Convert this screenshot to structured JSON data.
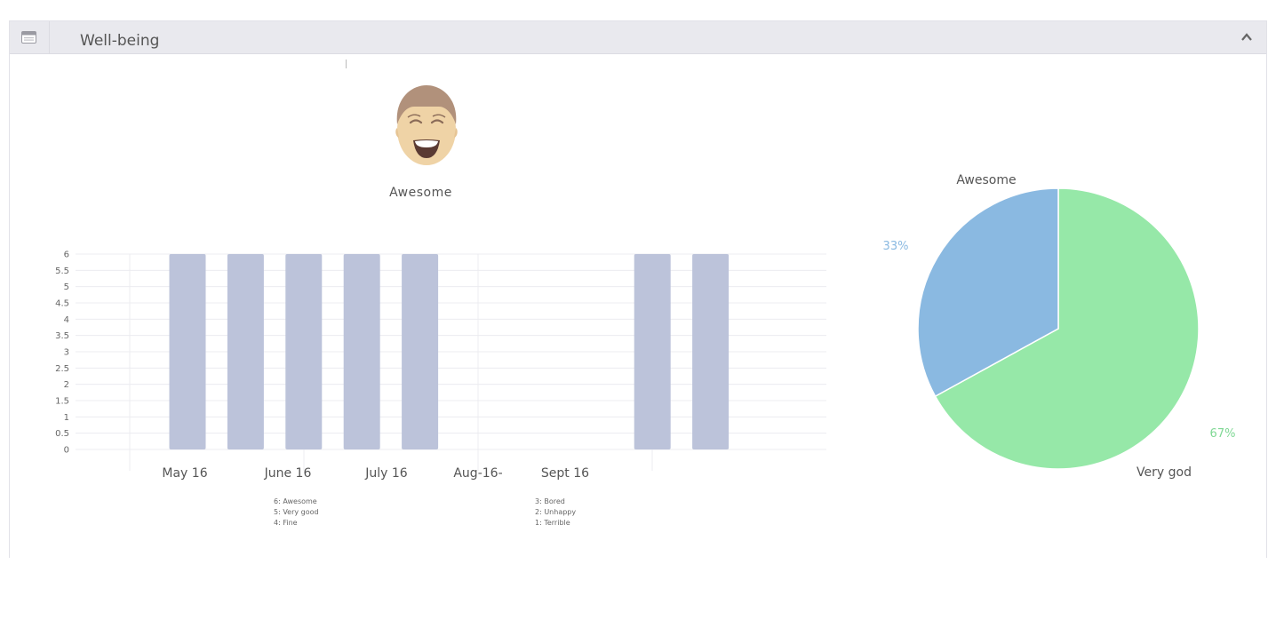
{
  "panel": {
    "title": "Well-being",
    "header_icon": "panel-window-icon",
    "collapse_icon": "chevron-up-icon"
  },
  "current_mood": {
    "label": "Awesome",
    "icon": "smiling-face-icon"
  },
  "legend": {
    "left": [
      "6: Awesome",
      "5: Very good",
      "4: Fine"
    ],
    "right": [
      "3: Bored",
      "2: Unhappy",
      "1: Terrible"
    ]
  },
  "chart_data": [
    {
      "type": "bar",
      "x_tick_labels": [
        "May 16",
        "June 16",
        "July 16",
        "Aug-16-",
        "Sept 16"
      ],
      "y_ticks": [
        "0",
        "0.5",
        "1",
        "1.5",
        "2",
        "2.5",
        "3",
        "3.5",
        "4",
        "4.5",
        "5",
        "5.5",
        "6"
      ],
      "ylim": [
        0,
        6
      ],
      "values": [
        6,
        6,
        6,
        6,
        6,
        0,
        0,
        0,
        6,
        6
      ],
      "bar_color": "#bcc3da",
      "grid": true
    },
    {
      "type": "pie",
      "slices": [
        {
          "label": "Awesome",
          "value": 33,
          "percent_label": "33%",
          "color": "#8ab9e1"
        },
        {
          "label": "Very god",
          "value": 67,
          "percent_label": "67%",
          "color": "#96e8a8"
        }
      ]
    }
  ]
}
